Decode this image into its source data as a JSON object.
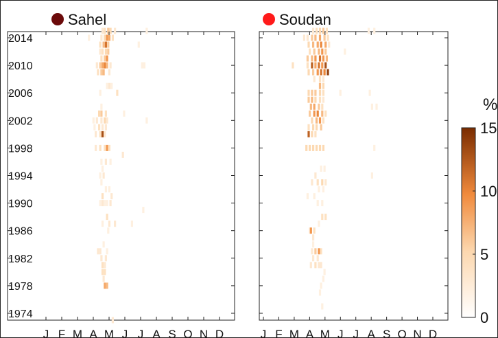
{
  "chart_data": [
    {
      "type": "heatmap",
      "panel": "Sahel",
      "title": "Sahel",
      "marker_color": "#6b0a0a",
      "y_ticks": [
        "2014",
        "2010",
        "2006",
        "2002",
        "1998",
        "1994",
        "1990",
        "1986",
        "1982",
        "1978",
        "1974"
      ],
      "x_ticks": [
        "J",
        "F",
        "M",
        "A",
        "M",
        "J",
        "J",
        "A",
        "S",
        "O",
        "N",
        "D"
      ],
      "ylim": [
        1973,
        2015
      ],
      "xlim": [
        0,
        12
      ],
      "note": "cells: [year, month-position(0-12), value %]",
      "cells": [
        [
          2015,
          5.0,
          3
        ],
        [
          2015,
          5.2,
          4
        ],
        [
          2015,
          5.5,
          6
        ],
        [
          2015,
          5.7,
          5
        ],
        [
          2015,
          6.1,
          3
        ],
        [
          2015,
          8.9,
          2
        ],
        [
          2014,
          3.8,
          2
        ],
        [
          2014,
          4.9,
          3
        ],
        [
          2014,
          5.2,
          5
        ],
        [
          2014,
          5.4,
          9
        ],
        [
          2014,
          5.6,
          8
        ],
        [
          2014,
          5.9,
          4
        ],
        [
          2013,
          4.8,
          4
        ],
        [
          2013,
          5.1,
          7
        ],
        [
          2013,
          5.3,
          11
        ],
        [
          2013,
          5.5,
          6
        ],
        [
          2013,
          8.2,
          2
        ],
        [
          2012,
          4.8,
          3
        ],
        [
          2012,
          5.0,
          4
        ],
        [
          2012,
          5.3,
          5
        ],
        [
          2012,
          5.5,
          6
        ],
        [
          2011,
          4.9,
          4
        ],
        [
          2011,
          5.2,
          6
        ],
        [
          2011,
          5.4,
          9
        ],
        [
          2010,
          4.5,
          3
        ],
        [
          2010,
          4.8,
          6
        ],
        [
          2010,
          5.0,
          8
        ],
        [
          2010,
          5.2,
          10
        ],
        [
          2010,
          5.4,
          7
        ],
        [
          2010,
          5.7,
          3
        ],
        [
          2010,
          8.5,
          2
        ],
        [
          2010,
          8.7,
          2
        ],
        [
          2009,
          4.6,
          4
        ],
        [
          2009,
          4.9,
          6
        ],
        [
          2009,
          5.1,
          7
        ],
        [
          2009,
          5.6,
          3
        ],
        [
          2007,
          5.4,
          2
        ],
        [
          2007,
          5.6,
          3
        ],
        [
          2007,
          5.8,
          2
        ],
        [
          2006,
          4.8,
          2
        ],
        [
          2006,
          6.3,
          4
        ],
        [
          2004,
          4.9,
          2
        ],
        [
          2003,
          4.7,
          5
        ],
        [
          2003,
          4.9,
          6
        ],
        [
          2003,
          5.3,
          4
        ],
        [
          2003,
          6.9,
          2
        ],
        [
          2002,
          4.2,
          2
        ],
        [
          2002,
          4.5,
          3
        ],
        [
          2002,
          4.9,
          3
        ],
        [
          2002,
          5.2,
          5
        ],
        [
          2002,
          5.4,
          3
        ],
        [
          2002,
          8.9,
          2
        ],
        [
          2001,
          4.3,
          2
        ],
        [
          2001,
          4.7,
          4
        ],
        [
          2001,
          5.0,
          3
        ],
        [
          2001,
          5.3,
          3
        ],
        [
          2000,
          4.4,
          3
        ],
        [
          2000,
          4.8,
          4
        ],
        [
          2000,
          5.0,
          13
        ],
        [
          2000,
          5.2,
          3
        ],
        [
          1998,
          4.4,
          3
        ],
        [
          1998,
          4.8,
          4
        ],
        [
          1998,
          5.2,
          4
        ],
        [
          1998,
          5.4,
          9
        ],
        [
          1998,
          5.6,
          4
        ],
        [
          1997,
          6.8,
          3
        ],
        [
          1996,
          4.9,
          2
        ],
        [
          1996,
          5.3,
          3
        ],
        [
          1996,
          5.7,
          2
        ],
        [
          1995,
          5.0,
          2
        ],
        [
          1994,
          4.8,
          2
        ],
        [
          1994,
          5.1,
          3
        ],
        [
          1993,
          4.9,
          2
        ],
        [
          1992,
          5.3,
          2
        ],
        [
          1992,
          5.6,
          2
        ],
        [
          1991,
          5.0,
          4
        ],
        [
          1991,
          5.8,
          3
        ],
        [
          1990,
          4.8,
          2
        ],
        [
          1990,
          5.0,
          3
        ],
        [
          1990,
          5.2,
          2
        ],
        [
          1990,
          5.4,
          2
        ],
        [
          1990,
          5.7,
          3
        ],
        [
          1989,
          8.6,
          2
        ],
        [
          1988,
          5.4,
          4
        ],
        [
          1987,
          5.0,
          2
        ],
        [
          1987,
          5.6,
          3
        ],
        [
          1987,
          6.1,
          3
        ],
        [
          1987,
          7.6,
          2
        ],
        [
          1986,
          5.5,
          2
        ],
        [
          1984,
          5.1,
          2
        ],
        [
          1983,
          4.6,
          3
        ],
        [
          1983,
          4.8,
          3
        ],
        [
          1983,
          5.4,
          2
        ],
        [
          1982,
          4.9,
          3
        ],
        [
          1982,
          5.3,
          3
        ],
        [
          1981,
          5.0,
          4
        ],
        [
          1981,
          5.2,
          3
        ],
        [
          1980,
          5.0,
          4
        ],
        [
          1980,
          5.2,
          4
        ],
        [
          1979,
          5.1,
          3
        ],
        [
          1978,
          5.2,
          8
        ],
        [
          1978,
          5.4,
          7
        ],
        [
          1973,
          5.9,
          3
        ]
      ]
    },
    {
      "type": "heatmap",
      "panel": "Soudan",
      "title": "Soudan",
      "marker_color": "#ff1a1a",
      "y_ticks": [],
      "x_ticks": [
        "J",
        "F",
        "M",
        "A",
        "M",
        "J",
        "J",
        "A",
        "S",
        "O",
        "N",
        "D"
      ],
      "ylim": [
        1973,
        2015
      ],
      "xlim": [
        0,
        12
      ],
      "note": "cells: [year, month-position(0-12), value %]",
      "cells": [
        [
          2015,
          4.4,
          3
        ],
        [
          2015,
          4.7,
          4
        ],
        [
          2015,
          5.0,
          5
        ],
        [
          2015,
          5.3,
          6
        ],
        [
          2015,
          5.6,
          4
        ],
        [
          2015,
          9.3,
          2
        ],
        [
          2015,
          9.8,
          2
        ],
        [
          2014,
          3.6,
          3
        ],
        [
          2014,
          3.9,
          3
        ],
        [
          2014,
          4.3,
          6
        ],
        [
          2014,
          4.6,
          7
        ],
        [
          2014,
          5.0,
          8
        ],
        [
          2014,
          5.4,
          6
        ],
        [
          2014,
          5.7,
          4
        ],
        [
          2013,
          4.0,
          5
        ],
        [
          2013,
          4.4,
          7
        ],
        [
          2013,
          4.8,
          8
        ],
        [
          2013,
          5.1,
          10
        ],
        [
          2013,
          5.5,
          8
        ],
        [
          2013,
          5.8,
          3
        ],
        [
          2012,
          4.1,
          4
        ],
        [
          2012,
          4.5,
          6
        ],
        [
          2012,
          4.9,
          7
        ],
        [
          2012,
          5.2,
          9
        ],
        [
          2012,
          5.5,
          6
        ],
        [
          2012,
          7.2,
          2
        ],
        [
          2011,
          3.9,
          6
        ],
        [
          2011,
          4.3,
          7
        ],
        [
          2011,
          4.6,
          9
        ],
        [
          2011,
          5.0,
          11
        ],
        [
          2011,
          5.3,
          9
        ],
        [
          2011,
          5.6,
          7
        ],
        [
          2010,
          2.6,
          4
        ],
        [
          2010,
          3.9,
          4
        ],
        [
          2010,
          4.3,
          12
        ],
        [
          2010,
          4.6,
          8
        ],
        [
          2010,
          4.9,
          11
        ],
        [
          2010,
          5.2,
          9
        ],
        [
          2010,
          5.5,
          13
        ],
        [
          2009,
          4.0,
          5
        ],
        [
          2009,
          4.4,
          6
        ],
        [
          2009,
          4.8,
          9
        ],
        [
          2009,
          5.1,
          11
        ],
        [
          2009,
          5.4,
          10
        ],
        [
          2009,
          5.7,
          14
        ],
        [
          2008,
          4.5,
          3
        ],
        [
          2008,
          5.0,
          4
        ],
        [
          2008,
          5.3,
          3
        ],
        [
          2007,
          5.0,
          7
        ],
        [
          2007,
          5.3,
          5
        ],
        [
          2006,
          4.0,
          5
        ],
        [
          2006,
          4.3,
          6
        ],
        [
          2006,
          4.6,
          6
        ],
        [
          2006,
          5.0,
          5
        ],
        [
          2006,
          5.3,
          4
        ],
        [
          2006,
          6.8,
          2
        ],
        [
          2006,
          9.4,
          2
        ],
        [
          2005,
          4.0,
          6
        ],
        [
          2005,
          4.3,
          7
        ],
        [
          2005,
          4.6,
          5
        ],
        [
          2005,
          5.0,
          4
        ],
        [
          2005,
          5.3,
          3
        ],
        [
          2004,
          4.2,
          7
        ],
        [
          2004,
          4.5,
          8
        ],
        [
          2004,
          4.9,
          6
        ],
        [
          2004,
          5.2,
          4
        ],
        [
          2004,
          9.6,
          2
        ],
        [
          2004,
          10.0,
          2
        ],
        [
          2003,
          4.1,
          6
        ],
        [
          2003,
          4.5,
          9
        ],
        [
          2003,
          4.8,
          10
        ],
        [
          2003,
          5.2,
          7
        ],
        [
          2003,
          5.5,
          4
        ],
        [
          2002,
          4.3,
          5
        ],
        [
          2002,
          4.7,
          7
        ],
        [
          2002,
          5.0,
          9
        ],
        [
          2002,
          5.3,
          4
        ],
        [
          2001,
          4.0,
          4
        ],
        [
          2001,
          4.4,
          5
        ],
        [
          2001,
          4.7,
          5
        ],
        [
          2001,
          5.1,
          6
        ],
        [
          2000,
          4.0,
          12
        ],
        [
          2000,
          4.3,
          5
        ],
        [
          2000,
          4.6,
          4
        ],
        [
          1998,
          3.8,
          5
        ],
        [
          1998,
          4.1,
          5
        ],
        [
          1998,
          4.4,
          5
        ],
        [
          1998,
          4.7,
          5
        ],
        [
          1998,
          5.0,
          5
        ],
        [
          1998,
          5.3,
          5
        ],
        [
          1998,
          9.8,
          2
        ],
        [
          1995,
          5.1,
          2
        ],
        [
          1995,
          5.4,
          2
        ],
        [
          1994,
          4.6,
          3
        ],
        [
          1994,
          9.6,
          2
        ],
        [
          1993,
          4.3,
          3
        ],
        [
          1993,
          4.8,
          4
        ],
        [
          1993,
          5.2,
          5
        ],
        [
          1993,
          5.5,
          3
        ],
        [
          1992,
          4.9,
          2
        ],
        [
          1992,
          5.3,
          2
        ],
        [
          1991,
          3.9,
          2
        ],
        [
          1991,
          4.5,
          2
        ],
        [
          1990,
          4.8,
          2
        ],
        [
          1990,
          5.2,
          2
        ],
        [
          1988,
          5.2,
          4
        ],
        [
          1988,
          5.5,
          4
        ],
        [
          1987,
          4.9,
          2
        ],
        [
          1986,
          4.1,
          2
        ],
        [
          1986,
          4.2,
          9
        ],
        [
          1986,
          4.5,
          4
        ],
        [
          1985,
          4.4,
          3
        ],
        [
          1984,
          4.4,
          2
        ],
        [
          1983,
          4.3,
          3
        ],
        [
          1983,
          4.6,
          6
        ],
        [
          1983,
          4.9,
          9
        ],
        [
          1983,
          5.1,
          4
        ],
        [
          1982,
          4.4,
          3
        ],
        [
          1982,
          4.8,
          3
        ],
        [
          1981,
          4.2,
          3
        ],
        [
          1981,
          4.6,
          4
        ],
        [
          1981,
          4.9,
          3
        ],
        [
          1981,
          5.1,
          3
        ],
        [
          1980,
          5.4,
          2
        ],
        [
          1979,
          5.3,
          2
        ],
        [
          1978,
          5.1,
          2
        ],
        [
          1977,
          5.0,
          2
        ],
        [
          1975,
          5.2,
          2
        ]
      ]
    }
  ],
  "colorbar": {
    "unit": "%",
    "ticks": [
      "15",
      "10",
      "5",
      "0"
    ],
    "values": [
      15,
      10,
      5,
      0
    ],
    "range": [
      0,
      15
    ],
    "color_low": "#ffffff",
    "color_high": "#7a2c00"
  }
}
